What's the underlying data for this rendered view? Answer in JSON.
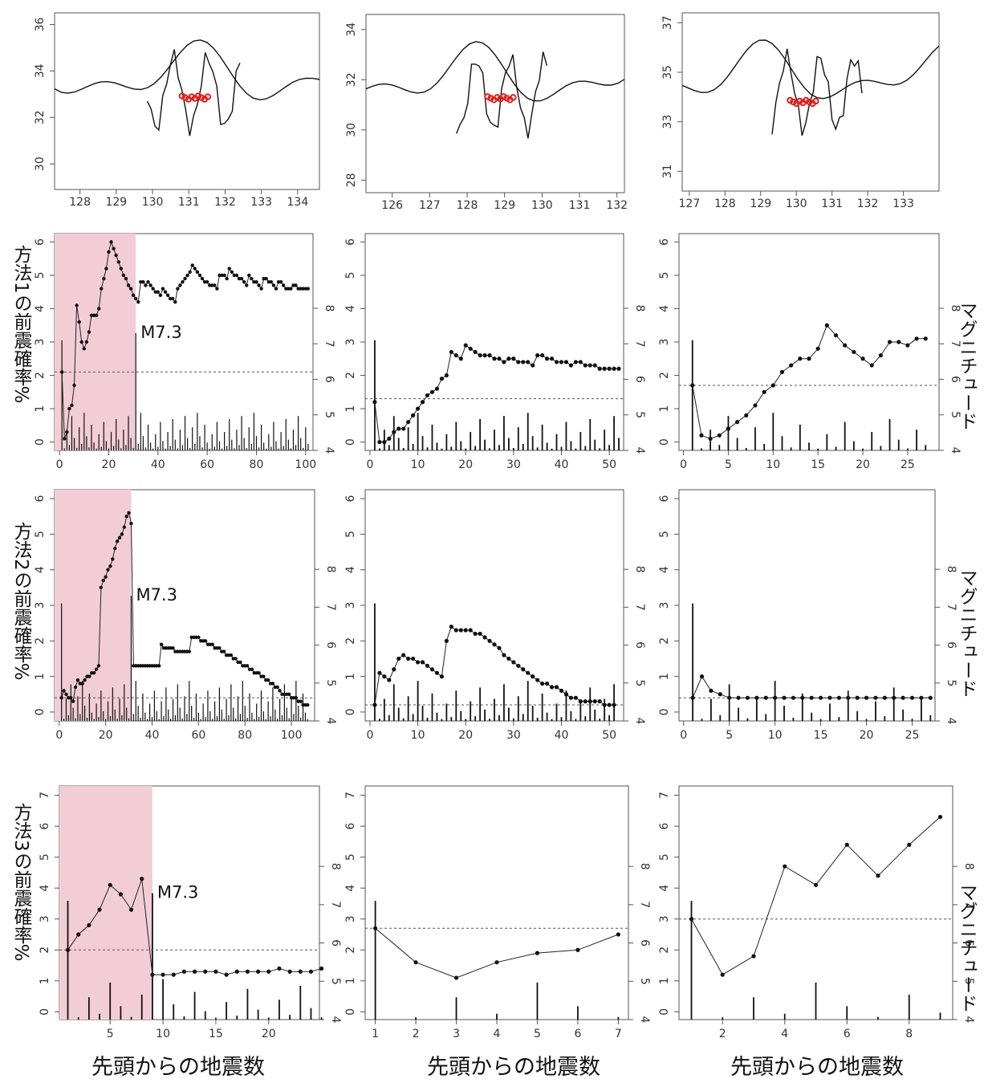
{
  "figure": {
    "row_labels": [
      "方法1の前震確率%",
      "方法2の前震確率%",
      "方法3の前震確率%"
    ],
    "right_axis_label": "マグニチュード",
    "x_label": "先頭からの地震数",
    "annotation": "M7.3"
  },
  "chart_data": [
    {
      "type": "map",
      "panel": "map-1",
      "lon_ticks": [
        128,
        129,
        130,
        131,
        132,
        133,
        134
      ],
      "lat_ticks": [
        30,
        32,
        34,
        36
      ],
      "xlim": [
        127.3,
        134.6
      ],
      "ylim": [
        28.9,
        36.5
      ]
    },
    {
      "type": "map",
      "panel": "map-2",
      "lon_ticks": [
        126,
        127,
        128,
        129,
        130,
        131,
        132
      ],
      "lat_ticks": [
        28,
        30,
        32,
        34
      ],
      "xlim": [
        125.3,
        132.2
      ],
      "ylim": [
        27.5,
        34.6
      ]
    },
    {
      "type": "map",
      "panel": "map-3",
      "lon_ticks": [
        127,
        128,
        129,
        130,
        131,
        132,
        133
      ],
      "lat_ticks": [
        31,
        33,
        35,
        37
      ],
      "xlim": [
        126.8,
        134.0
      ],
      "ylim": [
        30.2,
        37.4
      ]
    },
    {
      "type": "line",
      "panel": "m1-a",
      "xlim": [
        -2,
        103
      ],
      "ylim": [
        -0.25,
        6.25
      ],
      "xticks": [
        0,
        20,
        40,
        60,
        80,
        100
      ],
      "yticks": [
        0,
        1,
        2,
        3,
        4,
        5,
        6
      ],
      "mag_ticks": [
        4,
        5,
        6,
        7,
        8
      ],
      "mag_range": [
        4,
        10.1
      ],
      "threshold": 2.1,
      "shade_x": [
        -2,
        31
      ],
      "annot_x": 31,
      "prob": [
        2.1,
        0.1,
        0.3,
        1.0,
        1.1,
        1.7,
        4.1,
        3.6,
        3.0,
        2.8,
        3.0,
        3.3,
        3.8,
        3.8,
        3.8,
        4.0,
        4.6,
        4.9,
        5.2,
        5.7,
        6.0,
        5.8,
        5.6,
        5.4,
        5.2,
        5.0,
        4.9,
        4.7,
        4.6,
        4.4,
        4.3,
        4.2,
        4.8,
        4.8,
        4.7,
        4.8,
        4.7,
        4.6,
        4.5,
        4.5,
        4.4,
        4.6,
        4.5,
        4.4,
        4.3,
        4.3,
        4.2,
        4.6,
        4.7,
        4.8,
        4.9,
        5.0,
        5.1,
        5.3,
        5.2,
        5.1,
        5.0,
        4.9,
        4.8,
        4.8,
        4.7,
        4.7,
        4.7,
        4.6,
        5.0,
        5.0,
        5.0,
        4.9,
        5.2,
        5.1,
        5.0,
        5.0,
        4.9,
        4.9,
        4.8,
        4.7,
        5.0,
        4.9,
        4.8,
        4.8,
        4.7,
        4.6,
        4.9,
        4.9,
        4.8,
        4.8,
        4.7,
        4.6,
        4.8,
        4.8,
        4.7,
        4.6,
        4.6,
        4.6,
        4.7,
        4.7,
        4.6,
        4.6,
        4.6,
        4.6,
        4.6
      ]
    },
    {
      "type": "line",
      "panel": "m1-b",
      "xlim": [
        -1,
        53
      ],
      "ylim": [
        -0.25,
        6.25
      ],
      "xticks": [
        0,
        10,
        20,
        30,
        40,
        50
      ],
      "yticks": [
        0,
        1,
        2,
        3,
        4,
        5,
        6
      ],
      "mag_ticks": [
        4,
        5,
        6,
        7,
        8
      ],
      "mag_range": [
        4,
        10.1
      ],
      "threshold": 1.3,
      "prob": [
        1.2,
        0.0,
        0.0,
        0.1,
        0.3,
        0.4,
        0.4,
        0.6,
        0.8,
        1.0,
        1.2,
        1.4,
        1.5,
        1.6,
        1.9,
        2.0,
        2.7,
        2.6,
        2.5,
        2.9,
        2.8,
        2.7,
        2.6,
        2.6,
        2.6,
        2.5,
        2.5,
        2.4,
        2.5,
        2.5,
        2.4,
        2.4,
        2.4,
        2.3,
        2.6,
        2.6,
        2.5,
        2.5,
        2.4,
        2.4,
        2.4,
        2.3,
        2.4,
        2.4,
        2.3,
        2.3,
        2.3,
        2.2,
        2.2,
        2.2,
        2.2,
        2.2
      ]
    },
    {
      "type": "line",
      "panel": "m1-c",
      "xlim": [
        -0.5,
        28.5
      ],
      "ylim": [
        -0.25,
        6.25
      ],
      "xticks": [
        0,
        5,
        10,
        15,
        20,
        25
      ],
      "yticks": [
        0,
        1,
        2,
        3,
        4,
        5,
        6
      ],
      "mag_ticks": [
        4,
        5,
        6,
        7,
        8
      ],
      "mag_range": [
        4,
        10.1
      ],
      "threshold": 1.7,
      "prob": [
        1.7,
        0.2,
        0.1,
        0.2,
        0.4,
        0.6,
        0.8,
        1.1,
        1.5,
        1.7,
        2.1,
        2.3,
        2.5,
        2.5,
        2.8,
        3.5,
        3.2,
        2.9,
        2.7,
        2.5,
        2.3,
        2.6,
        3.0,
        3.0,
        2.9,
        3.1,
        3.1
      ]
    },
    {
      "type": "line",
      "panel": "m2-a",
      "xlim": [
        -2,
        110
      ],
      "ylim": [
        -0.25,
        6.25
      ],
      "xticks": [
        0,
        20,
        40,
        60,
        80,
        100
      ],
      "yticks": [
        0,
        1,
        2,
        3,
        4,
        5,
        6
      ],
      "mag_ticks": [
        4,
        5,
        6,
        7,
        8
      ],
      "mag_range": [
        4,
        10.1
      ],
      "threshold": 0.4,
      "shade_x": [
        -2,
        31
      ],
      "annot_x": 31,
      "prob": [
        0.4,
        0.6,
        0.5,
        0.4,
        0.4,
        0.3,
        0.7,
        0.9,
        0.8,
        0.8,
        0.9,
        1.0,
        1.0,
        1.1,
        1.1,
        1.2,
        1.3,
        3.5,
        3.7,
        3.8,
        4.0,
        4.1,
        4.3,
        4.6,
        4.8,
        4.9,
        5.0,
        5.2,
        5.5,
        5.6,
        5.3,
        1.3,
        1.3,
        1.3,
        1.3,
        1.3,
        1.3,
        1.3,
        1.3,
        1.3,
        1.3,
        1.3,
        1.3,
        1.9,
        1.8,
        1.8,
        1.8,
        1.8,
        1.8,
        1.7,
        1.7,
        1.7,
        1.7,
        1.7,
        1.7,
        1.7,
        2.1,
        2.1,
        2.1,
        2.1,
        2.0,
        2.0,
        2.0,
        1.9,
        1.9,
        1.9,
        1.8,
        1.8,
        1.8,
        1.7,
        1.7,
        1.6,
        1.6,
        1.6,
        1.5,
        1.5,
        1.4,
        1.4,
        1.3,
        1.3,
        1.3,
        1.2,
        1.2,
        1.1,
        1.1,
        1.1,
        1.0,
        1.0,
        0.9,
        0.9,
        0.8,
        0.8,
        0.7,
        0.7,
        0.6,
        0.5,
        0.5,
        0.5,
        0.5,
        0.4,
        0.4,
        0.4,
        0.3,
        0.3,
        0.2,
        0.2,
        0.2
      ]
    },
    {
      "type": "line",
      "panel": "m2-b",
      "xlim": [
        -1,
        53
      ],
      "ylim": [
        -0.25,
        6.25
      ],
      "xticks": [
        0,
        10,
        20,
        30,
        40,
        50
      ],
      "yticks": [
        0,
        1,
        2,
        3,
        4,
        5,
        6
      ],
      "mag_ticks": [
        4,
        5,
        6,
        7,
        8
      ],
      "mag_range": [
        4,
        10.1
      ],
      "threshold": 0.2,
      "prob": [
        0.2,
        1.1,
        1.0,
        0.9,
        1.2,
        1.5,
        1.6,
        1.5,
        1.5,
        1.4,
        1.4,
        1.3,
        1.2,
        1.1,
        1.0,
        2.0,
        2.4,
        2.3,
        2.3,
        2.3,
        2.3,
        2.2,
        2.2,
        2.1,
        2.0,
        1.9,
        1.8,
        1.6,
        1.5,
        1.4,
        1.3,
        1.2,
        1.1,
        1.0,
        0.9,
        0.8,
        0.8,
        0.7,
        0.7,
        0.6,
        0.5,
        0.4,
        0.4,
        0.3,
        0.3,
        0.3,
        0.3,
        0.3,
        0.2,
        0.2,
        0.2
      ]
    },
    {
      "type": "line",
      "panel": "m2-c",
      "xlim": [
        -0.5,
        27.5
      ],
      "ylim": [
        -0.25,
        6.25
      ],
      "xticks": [
        0,
        5,
        10,
        15,
        20,
        25
      ],
      "yticks": [
        0,
        1,
        2,
        3,
        4,
        5,
        6
      ],
      "mag_ticks": [
        4,
        5,
        6,
        7,
        8
      ],
      "mag_range": [
        4,
        10.1
      ],
      "threshold": 0.4,
      "prob": [
        0.4,
        1.0,
        0.6,
        0.5,
        0.4,
        0.4,
        0.4,
        0.4,
        0.4,
        0.4,
        0.4,
        0.4,
        0.4,
        0.4,
        0.4,
        0.4,
        0.4,
        0.4,
        0.4,
        0.4,
        0.4,
        0.4,
        0.4,
        0.4,
        0.4,
        0.4,
        0.4
      ]
    },
    {
      "type": "line",
      "panel": "m3-a",
      "xlim": [
        0.2,
        24.8
      ],
      "ylim": [
        -0.25,
        7.3
      ],
      "xticks": [
        5,
        10,
        15,
        20
      ],
      "yticks": [
        0,
        1,
        2,
        3,
        4,
        5,
        6,
        7
      ],
      "mag_ticks": [
        4,
        5,
        6,
        7,
        8
      ],
      "mag_range": [
        4,
        10.1
      ],
      "threshold": 2.0,
      "shade_x": [
        0.2,
        9
      ],
      "annot_x": 9,
      "prob": [
        2.0,
        2.5,
        2.8,
        3.3,
        4.1,
        3.8,
        3.3,
        4.3,
        1.2,
        1.2,
        1.2,
        1.3,
        1.3,
        1.3,
        1.3,
        1.2,
        1.3,
        1.3,
        1.3,
        1.3,
        1.4,
        1.3,
        1.3,
        1.3,
        1.4
      ]
    },
    {
      "type": "line",
      "panel": "m3-b",
      "xlim": [
        0.75,
        7.25
      ],
      "ylim": [
        -0.25,
        7.3
      ],
      "xticks": [
        1,
        2,
        3,
        4,
        5,
        6,
        7
      ],
      "yticks": [
        0,
        1,
        2,
        3,
        4,
        5,
        6,
        7
      ],
      "mag_ticks": [
        4,
        5,
        6,
        7,
        8
      ],
      "mag_range": [
        4,
        10.1
      ],
      "threshold": 2.7,
      "prob": [
        2.7,
        1.6,
        1.1,
        1.6,
        1.9,
        2.0,
        2.5
      ]
    },
    {
      "type": "line",
      "panel": "m3-c",
      "xlim": [
        0.6,
        9.4
      ],
      "ylim": [
        -0.25,
        7.3
      ],
      "xticks": [
        2,
        4,
        6,
        8
      ],
      "yticks": [
        0,
        1,
        2,
        3,
        4,
        5,
        6,
        7
      ],
      "mag_ticks": [
        4,
        5,
        6,
        7,
        8
      ],
      "mag_range": [
        4,
        10.1
      ],
      "threshold": 3.0,
      "prob": [
        3.0,
        1.2,
        1.8,
        4.7,
        4.1,
        5.4,
        4.4,
        5.4,
        6.3
      ]
    }
  ]
}
